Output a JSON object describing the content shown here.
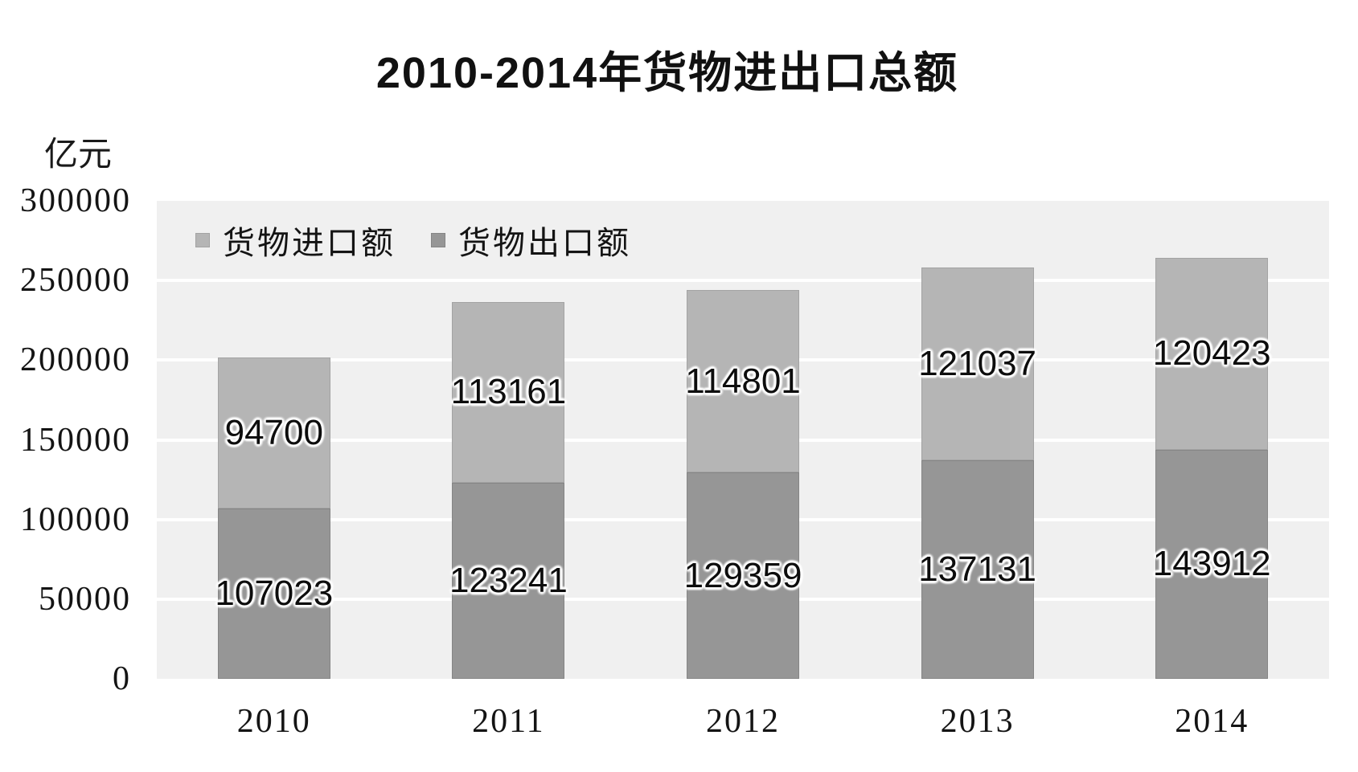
{
  "title": "2010-2014年货物进出口总额",
  "chart_data": {
    "type": "bar",
    "stacked": true,
    "title": "2010-2014年货物进出口总额",
    "unit_label": "亿元",
    "categories": [
      "2010",
      "2011",
      "2012",
      "2013",
      "2014"
    ],
    "series": [
      {
        "name": "货物出口额",
        "stack_position": "bottom",
        "color": "#969696",
        "border_color": "#858585",
        "values": [
          107023,
          123241,
          129359,
          137131,
          143912
        ]
      },
      {
        "name": "货物进口额",
        "stack_position": "top",
        "color": "#b5b5b5",
        "border_color": "#a3a3a3",
        "values": [
          94700,
          113161,
          114801,
          121037,
          120423
        ]
      }
    ],
    "legend": {
      "position": "inside-top-left",
      "items": [
        {
          "label": "货物进口额",
          "color": "#b5b5b5",
          "border_color": "#a3a3a3"
        },
        {
          "label": "货物出口额",
          "color": "#969696",
          "border_color": "#858585"
        }
      ]
    },
    "ylim": [
      0,
      300000
    ],
    "ytick_step": 50000,
    "yticks": [
      300000,
      250000,
      200000,
      150000,
      100000,
      50000,
      0
    ],
    "grid": "horizontal",
    "grid_color": "#ffffff",
    "plot_bg_color": "#f0f0f0",
    "page_bg_color": "#ffffff",
    "text_color": "#141414",
    "data_label_color": "#0d0d0d",
    "data_label_halo": "#ffffff"
  }
}
